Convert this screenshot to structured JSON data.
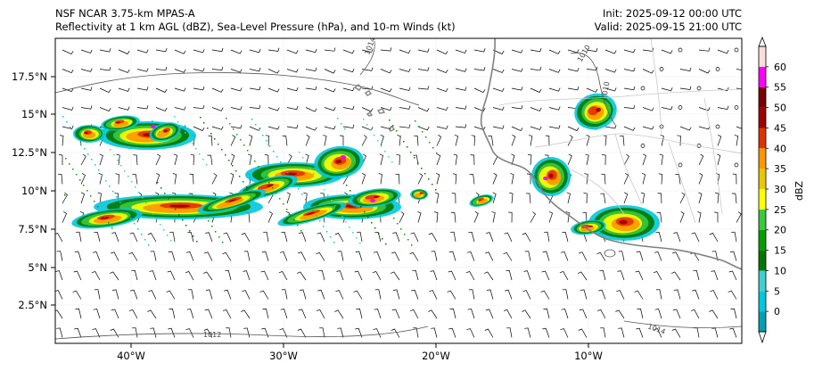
{
  "titles": {
    "left_line1": "NSF NCAR 3.75-km MPAS-A",
    "left_line2": "Reflectivity at 1 km AGL (dBZ), Sea-Level Pressure (hPa), and 10-m Winds (kt)",
    "right_line1": "Init: 2025-09-12 00:00 UTC",
    "right_line2": "Valid: 2025-09-15 21:00 UTC"
  },
  "map": {
    "lon_ticks": [
      "40°W",
      "30°W",
      "20°W",
      "10°W"
    ],
    "lat_ticks": [
      "17.5°N",
      "15°N",
      "12.5°N",
      "10°N",
      "7.5°N",
      "5°N",
      "2.5°N"
    ],
    "isobar_labels": [
      "1014",
      "1010",
      "1010",
      "1012",
      "1014"
    ],
    "coast_color": "#808080",
    "border_color": "#c8c8c8",
    "isobar_color": "#555555"
  },
  "colorbar": {
    "label": "dBZ",
    "tick_labels": [
      "0",
      "5",
      "10",
      "15",
      "20",
      "25",
      "30",
      "35",
      "40",
      "45",
      "50",
      "55",
      "60"
    ],
    "colors": [
      "#00a0b0",
      "#00c8dc",
      "#3ecfcf",
      "#007800",
      "#00a000",
      "#3cc83c",
      "#ffff00",
      "#e8c800",
      "#ff9600",
      "#e03200",
      "#a00000",
      "#780000",
      "#ff00ff",
      "#ffdcdc"
    ]
  }
}
